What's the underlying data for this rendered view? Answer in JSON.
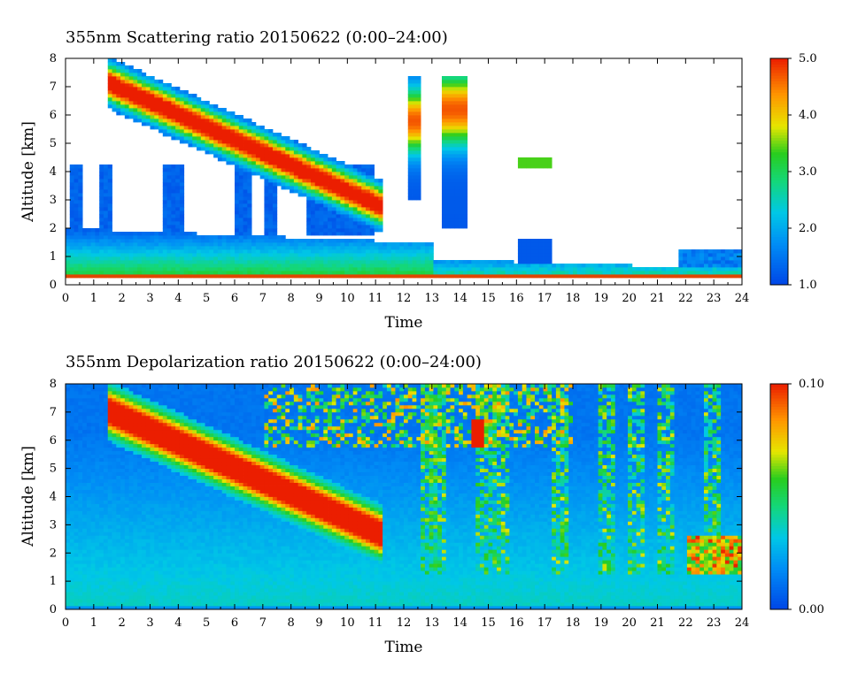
{
  "chart_data": [
    {
      "type": "heatmap",
      "title": "355nm Scattering ratio  20150622 (0:00–24:00)",
      "xlabel": "Time",
      "ylabel": "Altitude [km]",
      "xlim": [
        0,
        24
      ],
      "ylim": [
        0,
        8
      ],
      "x_ticks": [
        "0",
        "1",
        "2",
        "3",
        "4",
        "5",
        "6",
        "7",
        "8",
        "9",
        "10",
        "11",
        "12",
        "13",
        "14",
        "15",
        "16",
        "17",
        "18",
        "19",
        "20",
        "21",
        "22",
        "23",
        "24"
      ],
      "y_ticks": [
        "0",
        "1",
        "2",
        "3",
        "4",
        "5",
        "6",
        "7",
        "8"
      ],
      "colorbar": {
        "range": [
          1.0,
          5.0
        ],
        "tick_values": [
          1.0,
          2.0,
          3.0,
          4.0,
          5.0
        ],
        "tick_labels": [
          "1.0",
          "2.0",
          "3.0",
          "4.0",
          "5.0"
        ]
      },
      "features": {
        "aerosol_layer_top_km": 2.0,
        "boundary_layer_top_km": 0.6,
        "cloud_band": {
          "start_time": 1.5,
          "start_alt_km": 7.1,
          "end_time": 11.0,
          "end_alt_km": 3.3
        },
        "upper_clouds": [
          {
            "time": 12.3,
            "alt_km": 6.0
          },
          {
            "time": 13.8,
            "alt_km": 6.3
          },
          {
            "time": 16.5,
            "alt_km": 4.3
          }
        ]
      }
    },
    {
      "type": "heatmap",
      "title": "355nm Depolarization ratio  20150622 (0:00–24:00)",
      "xlabel": "Time",
      "ylabel": "Altitude [km]",
      "xlim": [
        0,
        24
      ],
      "ylim": [
        0,
        8
      ],
      "x_ticks": [
        "0",
        "1",
        "2",
        "3",
        "4",
        "5",
        "6",
        "7",
        "8",
        "9",
        "10",
        "11",
        "12",
        "13",
        "14",
        "15",
        "16",
        "17",
        "18",
        "19",
        "20",
        "21",
        "22",
        "23",
        "24"
      ],
      "y_ticks": [
        "0",
        "1",
        "2",
        "3",
        "4",
        "5",
        "6",
        "7",
        "8"
      ],
      "colorbar": {
        "range": [
          0.0,
          0.1
        ],
        "tick_values": [
          0.0,
          0.1
        ],
        "tick_labels": [
          "0.00",
          "0.10"
        ]
      },
      "features": {
        "cloud_band": {
          "start_time": 1.5,
          "start_alt_km": 7.1,
          "end_time": 10.5,
          "end_alt_km": 3.0
        },
        "low_layer_top_km": 0.4
      }
    }
  ]
}
